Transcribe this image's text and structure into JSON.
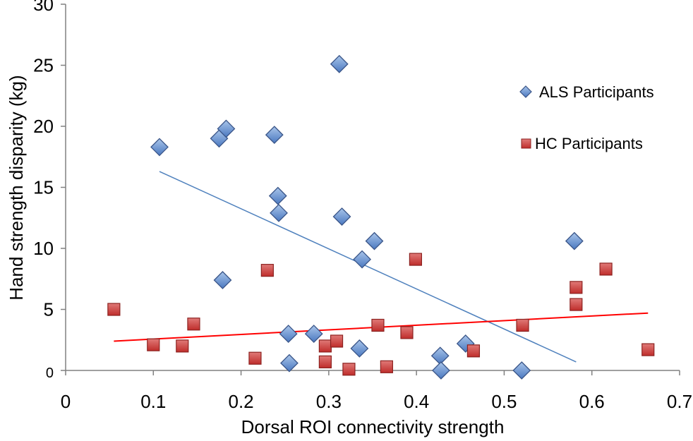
{
  "chart_data": {
    "type": "scatter",
    "title": "",
    "xlabel": "Dorsal ROI connectivity strength",
    "ylabel": "Hand strength disparity (kg)",
    "xlim": [
      0,
      0.7
    ],
    "ylim": [
      0,
      30
    ],
    "xticks": [
      0,
      0.1,
      0.2,
      0.3,
      0.4,
      0.5,
      0.6,
      0.7
    ],
    "xtick_labels": [
      "0",
      "0.1",
      "0.2",
      "0.3",
      "0.4",
      "0.5",
      "0.6",
      "0.7"
    ],
    "yticks": [
      0,
      5,
      10,
      15,
      20,
      25,
      30
    ],
    "ytick_labels": [
      "0",
      "5",
      "10",
      "15",
      "20",
      "25",
      "30"
    ],
    "grid": false,
    "legend_position": "right",
    "series": [
      {
        "name": "ALS Participants",
        "marker": "diamond",
        "color": "#4f81bd",
        "fill_top": "#a9c5ea",
        "fill_bottom": "#4a78c0",
        "stroke": "#3a5588",
        "points": [
          [
            0.107,
            18.3
          ],
          [
            0.175,
            19.0
          ],
          [
            0.183,
            19.8
          ],
          [
            0.238,
            19.3
          ],
          [
            0.312,
            25.1
          ],
          [
            0.242,
            14.3
          ],
          [
            0.243,
            12.9
          ],
          [
            0.315,
            12.6
          ],
          [
            0.352,
            10.6
          ],
          [
            0.338,
            9.1
          ],
          [
            0.179,
            7.4
          ],
          [
            0.58,
            10.6
          ],
          [
            0.254,
            3.0
          ],
          [
            0.283,
            3.0
          ],
          [
            0.335,
            1.8
          ],
          [
            0.255,
            0.6
          ],
          [
            0.427,
            1.2
          ],
          [
            0.456,
            2.2
          ],
          [
            0.428,
            0.0
          ],
          [
            0.52,
            0.0
          ]
        ],
        "trendline": {
          "color": "#4f81bd",
          "x": [
            0.107,
            0.582
          ],
          "y": [
            16.3,
            0.7
          ]
        }
      },
      {
        "name": "HC Participants",
        "marker": "square",
        "color": "#c0504d",
        "fill_top": "#e07a78",
        "fill_bottom": "#bf2d2b",
        "stroke": "#8c2220",
        "points": [
          [
            0.055,
            5.0
          ],
          [
            0.1,
            2.1
          ],
          [
            0.133,
            2.0
          ],
          [
            0.146,
            3.8
          ],
          [
            0.216,
            1.0
          ],
          [
            0.23,
            8.2
          ],
          [
            0.296,
            2.0
          ],
          [
            0.296,
            0.7
          ],
          [
            0.309,
            2.4
          ],
          [
            0.323,
            0.1
          ],
          [
            0.356,
            3.7
          ],
          [
            0.366,
            0.3
          ],
          [
            0.389,
            3.1
          ],
          [
            0.399,
            9.1
          ],
          [
            0.465,
            1.6
          ],
          [
            0.521,
            3.7
          ],
          [
            0.582,
            6.8
          ],
          [
            0.582,
            5.4
          ],
          [
            0.616,
            8.3
          ],
          [
            0.664,
            1.7
          ]
        ],
        "trendline": {
          "color": "#ff0000",
          "x": [
            0.055,
            0.664
          ],
          "y": [
            2.4,
            4.7
          ]
        }
      }
    ]
  }
}
